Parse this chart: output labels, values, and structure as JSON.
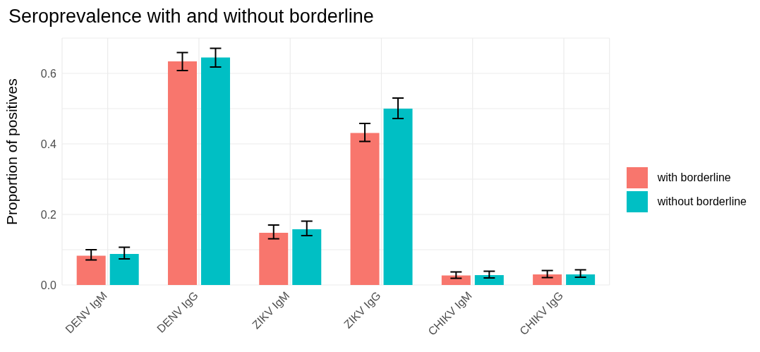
{
  "chart_data": {
    "type": "bar",
    "title": "Seroprevalence with and without borderline",
    "ylabel": "Proportion of positives",
    "categories": [
      "DENV IgM",
      "DENV IgG",
      "ZIKV IgM",
      "ZIKV IgG",
      "CHIKV IgM",
      "CHIKV IgG"
    ],
    "series": [
      {
        "name": "with borderline",
        "color": "#f8766d",
        "values": [
          0.083,
          0.634,
          0.148,
          0.431,
          0.027,
          0.03
        ],
        "errors": [
          [
            0.071,
            0.1
          ],
          [
            0.608,
            0.659
          ],
          [
            0.131,
            0.17
          ],
          [
            0.407,
            0.458
          ],
          [
            0.019,
            0.037
          ],
          [
            0.021,
            0.041
          ]
        ]
      },
      {
        "name": "without borderline",
        "color": "#00bfc4",
        "values": [
          0.088,
          0.645,
          0.158,
          0.5,
          0.028,
          0.03
        ],
        "errors": [
          [
            0.074,
            0.107
          ],
          [
            0.618,
            0.671
          ],
          [
            0.14,
            0.181
          ],
          [
            0.472,
            0.53
          ],
          [
            0.02,
            0.039
          ],
          [
            0.022,
            0.043
          ]
        ]
      }
    ],
    "ylim": [
      0,
      0.7
    ],
    "yticks": [
      {
        "value": 0,
        "label": "0.0"
      },
      {
        "value": 0.1,
        "label": null
      },
      {
        "value": 0.2,
        "label": "0.2"
      },
      {
        "value": 0.3,
        "label": null
      },
      {
        "value": 0.4,
        "label": "0.4"
      },
      {
        "value": 0.5,
        "label": null
      },
      {
        "value": 0.6,
        "label": "0.6"
      }
    ],
    "grid": true,
    "legend": "right"
  }
}
